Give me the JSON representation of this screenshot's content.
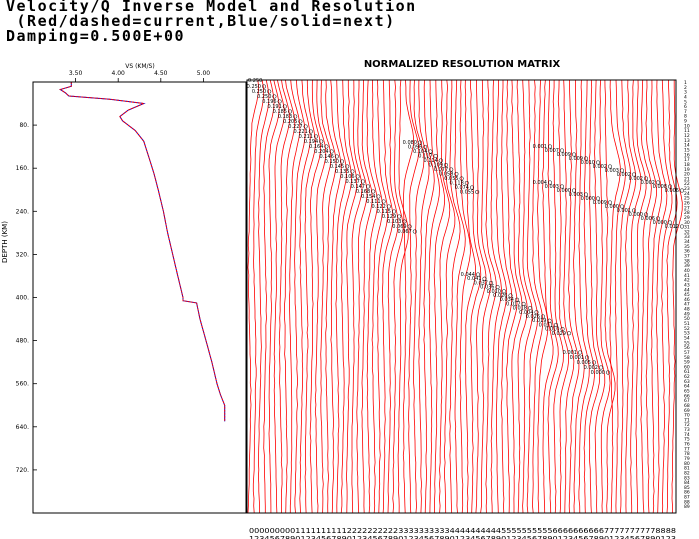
{
  "title_line1": "Velocity/Q Inverse Model and Resolution",
  "title_line2": " (Red/dashed=current,Blue/solid=next)",
  "title_line3": "Damping=0.500E+00",
  "colors": {
    "current": "#ff0000",
    "next": "#0000cc",
    "axis": "#000000"
  },
  "chart_data": [
    {
      "type": "line",
      "xlabel": "VS (KM/S)",
      "ylabel": "DEPTH (KM)",
      "x_ticks": [
        "3.50",
        "4.00",
        "4.50",
        "5.00"
      ],
      "y_ticks": [
        "80.",
        "160.",
        "240.",
        "320.",
        "400.",
        "480.",
        "560.",
        "640.",
        "720."
      ],
      "xlim": [
        3.0,
        5.5
      ],
      "ylim": [
        0,
        800
      ],
      "series": [
        {
          "style": "solid",
          "points": [
            [
              3.45,
              0
            ],
            [
              3.45,
              8
            ],
            [
              3.32,
              14
            ],
            [
              3.38,
              20
            ],
            [
              3.42,
              26
            ],
            [
              3.9,
              32
            ],
            [
              4.3,
              40
            ],
            [
              4.12,
              52
            ],
            [
              4.02,
              64
            ],
            [
              4.05,
              72
            ],
            [
              4.2,
              90
            ],
            [
              4.3,
              110
            ],
            [
              4.36,
              140
            ],
            [
              4.42,
              170
            ],
            [
              4.47,
              200
            ],
            [
              4.53,
              240
            ],
            [
              4.58,
              280
            ],
            [
              4.64,
              320
            ],
            [
              4.7,
              360
            ],
            [
              4.76,
              400
            ],
            [
              4.76,
              406
            ],
            [
              4.92,
              410
            ],
            [
              4.96,
              440
            ],
            [
              5.03,
              480
            ],
            [
              5.1,
              520
            ],
            [
              5.16,
              560
            ],
            [
              5.2,
              580
            ],
            [
              5.25,
              600
            ],
            [
              5.25,
              630
            ]
          ]
        },
        {
          "style": "dashed",
          "points": [
            [
              3.45,
              0
            ],
            [
              3.45,
              8
            ],
            [
              3.32,
              14
            ],
            [
              3.38,
              20
            ],
            [
              3.42,
              26
            ],
            [
              3.9,
              32
            ],
            [
              4.3,
              40
            ],
            [
              4.12,
              52
            ],
            [
              4.02,
              64
            ],
            [
              4.05,
              72
            ],
            [
              4.2,
              90
            ],
            [
              4.3,
              110
            ],
            [
              4.36,
              140
            ],
            [
              4.42,
              170
            ],
            [
              4.47,
              200
            ],
            [
              4.53,
              240
            ],
            [
              4.58,
              280
            ],
            [
              4.64,
              320
            ],
            [
              4.7,
              360
            ],
            [
              4.76,
              400
            ],
            [
              4.76,
              406
            ],
            [
              4.92,
              410
            ],
            [
              4.96,
              440
            ],
            [
              5.03,
              480
            ],
            [
              5.1,
              520
            ],
            [
              5.16,
              560
            ],
            [
              5.2,
              580
            ],
            [
              5.25,
              600
            ],
            [
              5.25,
              630
            ]
          ]
        }
      ]
    },
    {
      "type": "line",
      "title": "NORMALIZED RESOLUTION MATRIX",
      "n_rows": 89,
      "column_label_tens": "00000000011111111112222222222333333333344444444445555555555666666666677777777778888",
      "column_label_units": "12345678901234567890123456789012345678901234567890123456789012345678901234567890123",
      "top_left_value": "0.250",
      "diagonal_values": [
        "0.250",
        "0.250",
        "0.250",
        "0.196",
        "0.191",
        "0.185",
        "0.183",
        "0.205",
        "0.227",
        "0.221",
        "0.211",
        "0.194",
        "0.164",
        "0.204",
        "0.146",
        "0.150",
        "0.145",
        "0.135",
        "0.106",
        "0.137",
        "0.147",
        "0.168",
        "0.154",
        "0.111",
        "0.122",
        "0.115",
        "0.129",
        "0.103",
        "0.069",
        "0.067"
      ],
      "block2_values": [
        "0.080",
        "0.096",
        "0.104",
        "0.117",
        "0.114",
        "0.109",
        "0.077",
        "0.058",
        "0.055",
        "0.118",
        "0.074",
        "0.055"
      ],
      "block3_values": [
        "0.044",
        "0.041",
        "0.037",
        "0.036",
        "0.010",
        "0.026",
        "0.034",
        "0.017",
        "0.018",
        "0.004",
        "0.026",
        "0.019",
        "0.011",
        "0.010",
        "0.029"
      ],
      "block4_values": [
        "0.001",
        "0.007",
        "0.009",
        "0.009",
        "0.010",
        "0.002",
        "0.003",
        "0.002",
        "0.002",
        "0.002",
        "0.008",
        "0.006",
        "0.004",
        "0.003",
        "0.000",
        "0.003",
        "0.000",
        "0.009",
        "0.000",
        "0.001",
        "0.000",
        "0.006",
        "0.000",
        "0.012"
      ],
      "block5_values": [
        "0.001",
        "0.001",
        "0.005",
        "0.002",
        "0.000"
      ]
    }
  ]
}
